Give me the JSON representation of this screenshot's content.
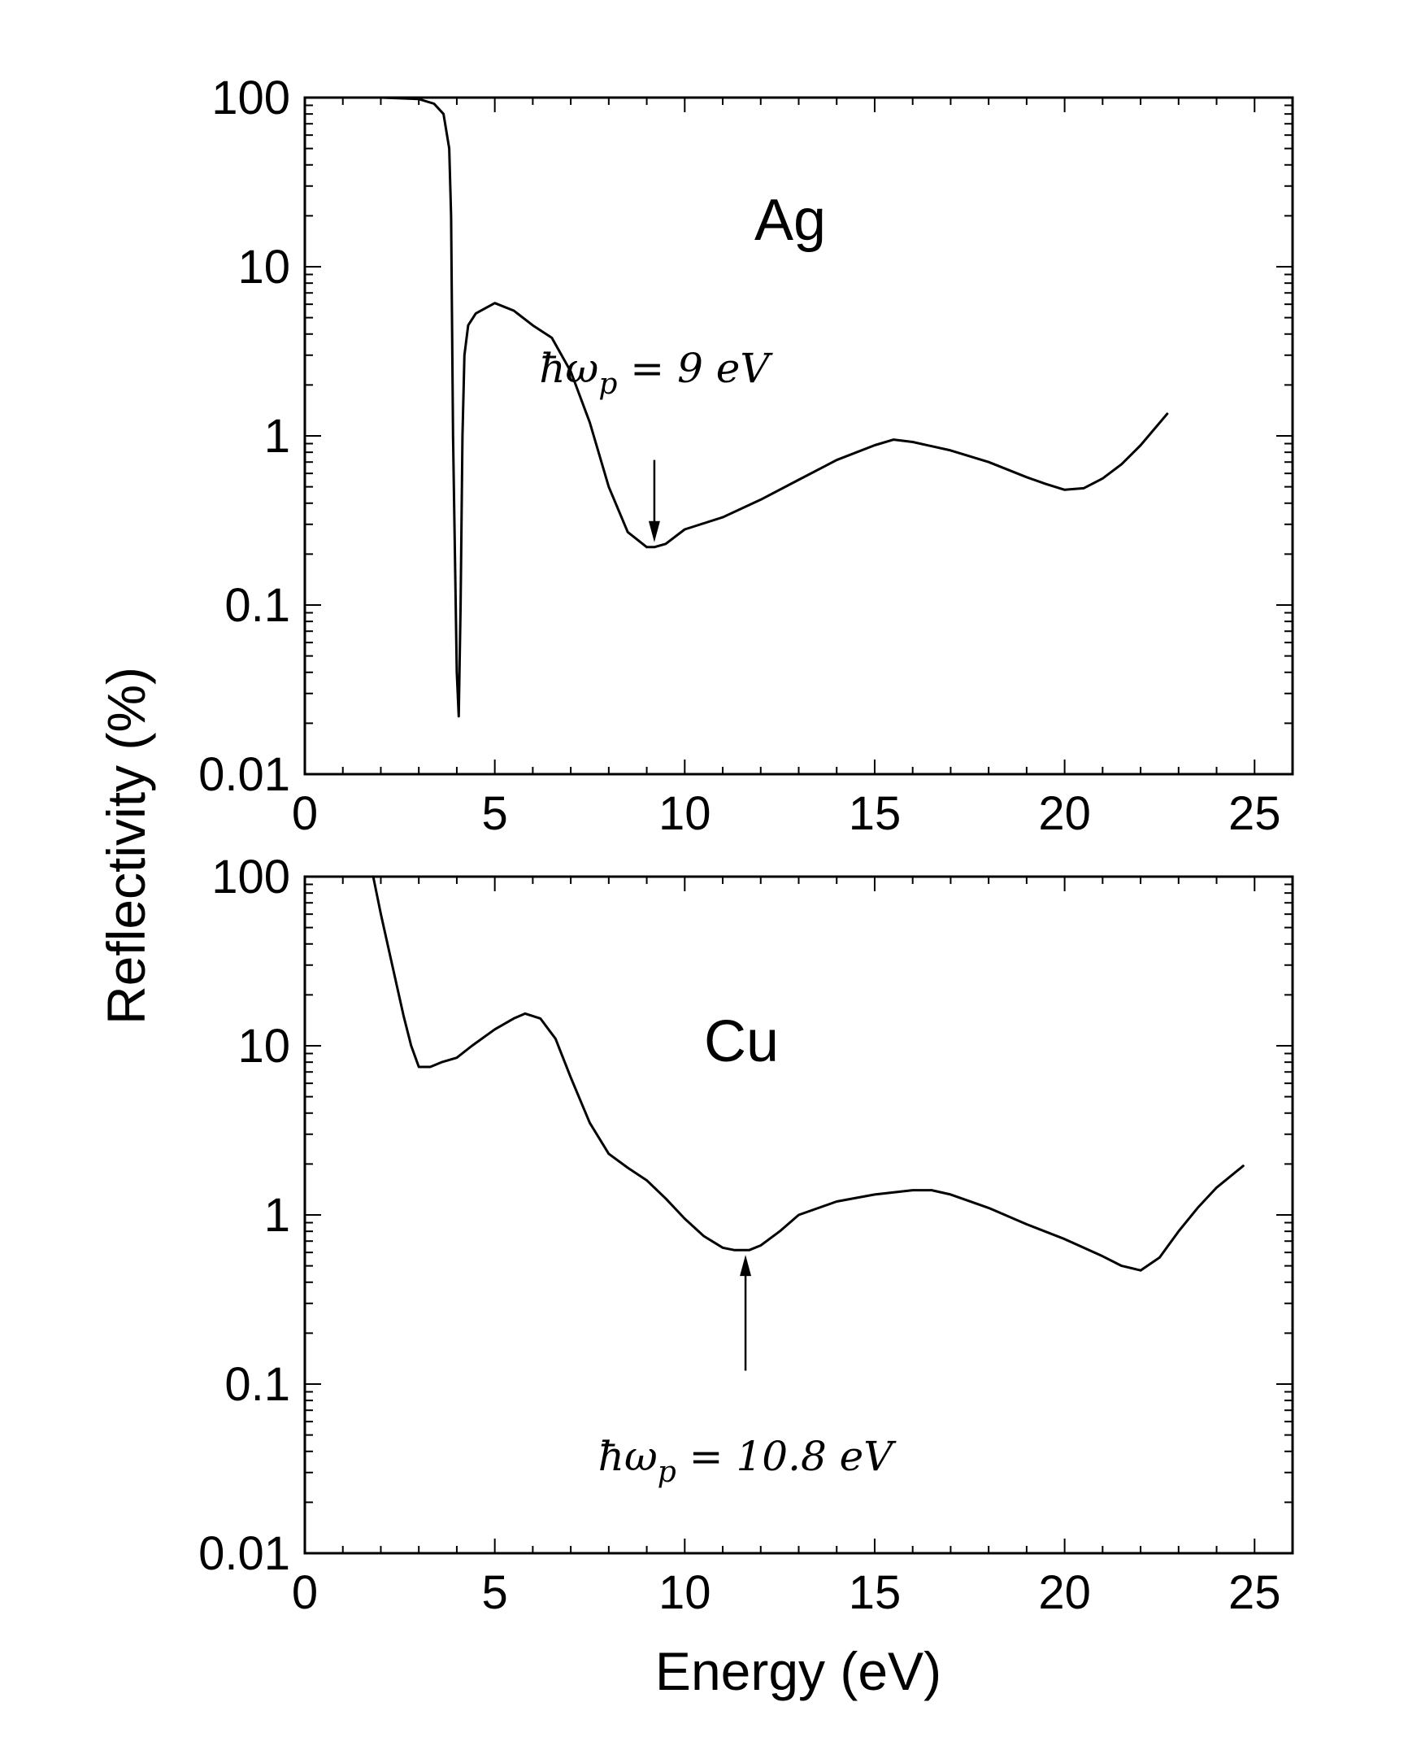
{
  "chart_data": [
    {
      "type": "line",
      "panel_label": "Ag",
      "xlabel": "",
      "ylabel": "Reflectivity (%)",
      "xlim": [
        0,
        26
      ],
      "ylim": [
        0.01,
        100
      ],
      "yscale": "log",
      "x_ticks": [
        0,
        5,
        10,
        15,
        20,
        25
      ],
      "x_tick_labels": [
        "0",
        "5",
        "10",
        "15",
        "20",
        "25"
      ],
      "y_ticks": [
        0.01,
        0.1,
        1,
        10,
        100
      ],
      "y_tick_labels": [
        "0.01",
        "0.1",
        "1",
        "10",
        "100"
      ],
      "grid": false,
      "series": [
        {
          "x": [
            1.0,
            2.0,
            3.0,
            3.4,
            3.65,
            3.8,
            3.85,
            3.9,
            3.95,
            4.0,
            4.05,
            4.1,
            4.15,
            4.2,
            4.3,
            4.5,
            5.0,
            5.5,
            6.0,
            6.5,
            7.0,
            7.5,
            8.0,
            8.5,
            9.0,
            9.2,
            9.5,
            10.0,
            11.0,
            12.0,
            13.0,
            14.0,
            15.0,
            15.5,
            16.0,
            17.0,
            18.0,
            19.0,
            19.5,
            20.0,
            20.5,
            21.0,
            21.5,
            22.0,
            22.7
          ],
          "y": [
            100,
            100,
            98,
            92,
            80,
            50,
            20,
            1.0,
            0.2,
            0.04,
            0.022,
            0.1,
            1.0,
            3.0,
            4.5,
            5.3,
            6.1,
            5.5,
            4.5,
            3.8,
            2.4,
            1.2,
            0.5,
            0.27,
            0.22,
            0.22,
            0.23,
            0.28,
            0.33,
            0.42,
            0.55,
            0.72,
            0.88,
            0.95,
            0.92,
            0.82,
            0.7,
            0.57,
            0.52,
            0.48,
            0.49,
            0.56,
            0.68,
            0.88,
            1.35
          ]
        }
      ],
      "annotations": [
        {
          "text": "ħω",
          "sub": "p",
          "rest": " = 9 eV",
          "arrow_to": [
            9.2,
            0.22
          ],
          "arrow_from": [
            9.2,
            0.72
          ]
        }
      ]
    },
    {
      "type": "line",
      "panel_label": "Cu",
      "xlabel": "Energy (eV)",
      "ylabel": "Reflectivity (%)",
      "xlim": [
        0,
        26
      ],
      "ylim": [
        0.01,
        100
      ],
      "yscale": "log",
      "x_ticks": [
        0,
        5,
        10,
        15,
        20,
        25
      ],
      "x_tick_labels": [
        "0",
        "5",
        "10",
        "15",
        "20",
        "25"
      ],
      "y_ticks": [
        0.01,
        0.1,
        1,
        10,
        100
      ],
      "y_tick_labels": [
        "0.01",
        "0.1",
        "1",
        "10",
        "100"
      ],
      "grid": false,
      "series": [
        {
          "x": [
            1.8,
            2.0,
            2.3,
            2.6,
            2.8,
            3.0,
            3.3,
            3.6,
            4.0,
            4.4,
            5.0,
            5.5,
            5.8,
            6.2,
            6.6,
            7.0,
            7.5,
            8.0,
            8.5,
            9.0,
            9.5,
            10.0,
            10.5,
            11.0,
            11.3,
            11.7,
            12.0,
            12.5,
            13.0,
            14.0,
            15.0,
            16.0,
            16.5,
            17.0,
            18.0,
            19.0,
            20.0,
            21.0,
            21.5,
            22.0,
            22.5,
            23.0,
            23.5,
            24.0,
            24.7
          ],
          "y": [
            100,
            60,
            30,
            15,
            10,
            7.5,
            7.5,
            8.0,
            8.5,
            10,
            12.5,
            14.5,
            15.5,
            14.5,
            11,
            6.5,
            3.5,
            2.3,
            1.9,
            1.6,
            1.25,
            0.95,
            0.75,
            0.64,
            0.62,
            0.62,
            0.66,
            0.8,
            1.0,
            1.2,
            1.32,
            1.4,
            1.4,
            1.32,
            1.1,
            0.88,
            0.72,
            0.57,
            0.5,
            0.47,
            0.56,
            0.8,
            1.1,
            1.45,
            1.95
          ]
        }
      ],
      "annotations": [
        {
          "text": "ħω",
          "sub": "p",
          "rest": " = 10.8 eV",
          "arrow_to": [
            11.6,
            0.62
          ],
          "arrow_from": [
            11.6,
            0.12
          ]
        }
      ]
    }
  ]
}
